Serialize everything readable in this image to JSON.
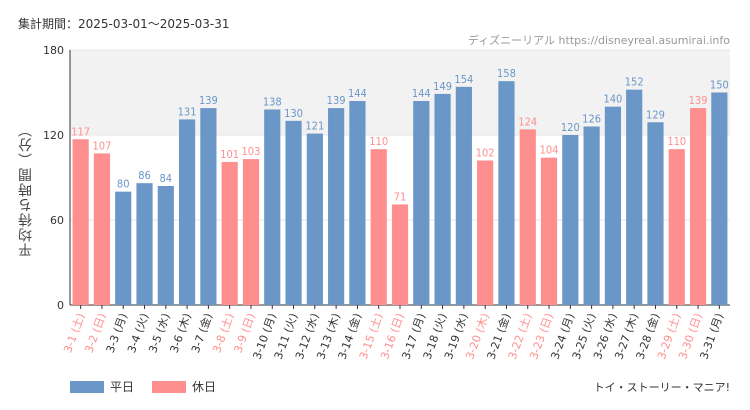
{
  "header": {
    "period_label": "集計期間：",
    "period_value": "2025-03-01〜2025-03-31",
    "site_name": "ディズニーリアル",
    "site_url": "https://disneyreal.asumirai.info"
  },
  "footer": {
    "brand": "トイ・ストーリー・マニア!"
  },
  "colors": {
    "weekday": "#6a96c8",
    "holiday": "#ff8e8e",
    "grid": "#e6e6e6",
    "band": "#f2f2f2",
    "axis": "#333333"
  },
  "chart_data": {
    "type": "bar",
    "title": "",
    "xlabel": "",
    "ylabel": "平均待ち時間（分）",
    "ylim": [
      0,
      180
    ],
    "yticks": [
      0,
      60,
      120,
      180
    ],
    "grid": true,
    "highlight_band": [
      120,
      180
    ],
    "legend": [
      {
        "key": "weekday",
        "label": "平日"
      },
      {
        "key": "holiday",
        "label": "休日"
      }
    ],
    "categories": [
      "3-1 (土)",
      "3-2 (日)",
      "3-3 (月)",
      "3-4 (火)",
      "3-5 (水)",
      "3-6 (木)",
      "3-7 (金)",
      "3-8 (土)",
      "3-9 (日)",
      "3-10 (月)",
      "3-11 (火)",
      "3-12 (水)",
      "3-13 (木)",
      "3-14 (金)",
      "3-15 (土)",
      "3-16 (日)",
      "3-17 (月)",
      "3-18 (火)",
      "3-19 (水)",
      "3-20 (木)",
      "3-21 (金)",
      "3-22 (土)",
      "3-23 (日)",
      "3-24 (月)",
      "3-25 (火)",
      "3-26 (水)",
      "3-27 (木)",
      "3-28 (金)",
      "3-29 (土)",
      "3-30 (日)",
      "3-31 (月)"
    ],
    "values": [
      117,
      107,
      80,
      86,
      84,
      131,
      139,
      101,
      103,
      138,
      130,
      121,
      139,
      144,
      110,
      71,
      144,
      149,
      154,
      102,
      158,
      124,
      104,
      120,
      126,
      140,
      152,
      129,
      110,
      139,
      150
    ],
    "day_type": [
      "holiday",
      "holiday",
      "weekday",
      "weekday",
      "weekday",
      "weekday",
      "weekday",
      "holiday",
      "holiday",
      "weekday",
      "weekday",
      "weekday",
      "weekday",
      "weekday",
      "holiday",
      "holiday",
      "weekday",
      "weekday",
      "weekday",
      "holiday",
      "weekday",
      "holiday",
      "holiday",
      "weekday",
      "weekday",
      "weekday",
      "weekday",
      "weekday",
      "holiday",
      "holiday",
      "weekday"
    ]
  }
}
